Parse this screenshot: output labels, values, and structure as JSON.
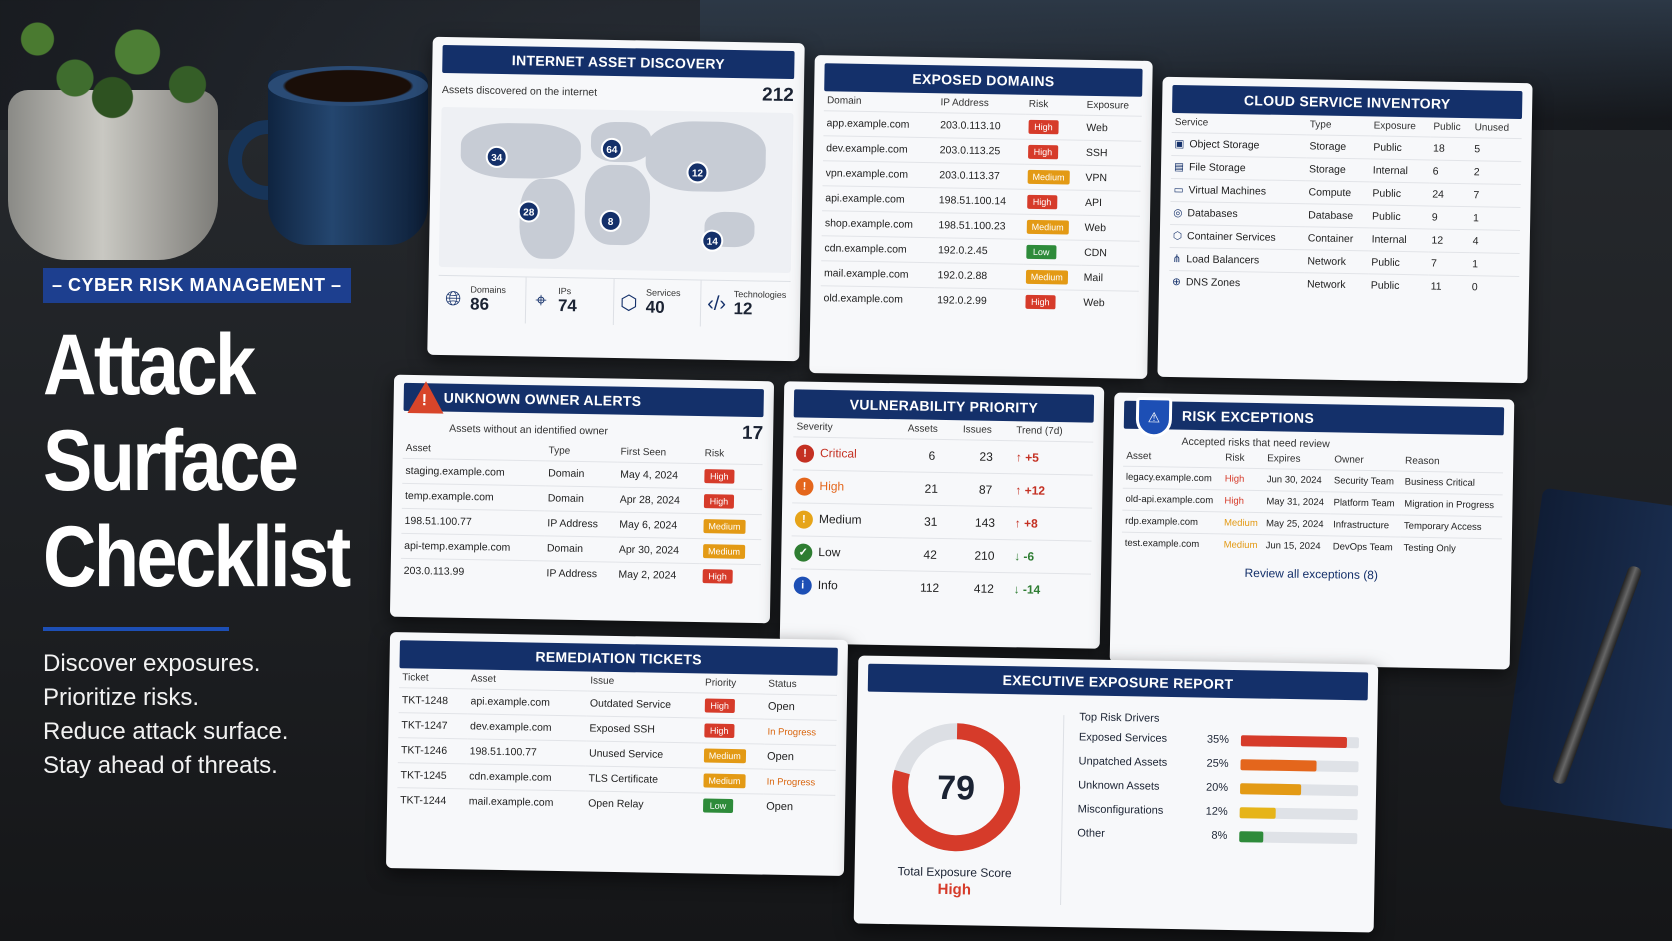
{
  "hero": {
    "kicker": "– CYBER RISK MANAGEMENT –",
    "title_lines": [
      "Attack",
      "Surface",
      "Checklist"
    ],
    "taglines": [
      "Discover exposures.",
      "Prioritize risks.",
      "Reduce attack surface.",
      "Stay ahead of threats."
    ]
  },
  "asset_discovery": {
    "title": "INTERNET ASSET DISCOVERY",
    "subtitle": "Assets discovered on the internet",
    "total": "212",
    "pins": [
      "34",
      "64",
      "12",
      "28",
      "8",
      "14"
    ],
    "stats": [
      {
        "icon": "globe-icon",
        "label": "Domains",
        "value": "86"
      },
      {
        "icon": "location-pin-icon",
        "label": "IPs",
        "value": "74"
      },
      {
        "icon": "cube-icon",
        "label": "Services",
        "value": "40"
      },
      {
        "icon": "code-icon",
        "label": "Technologies",
        "value": "12"
      }
    ]
  },
  "exposed_domains": {
    "title": "EXPOSED DOMAINS",
    "headers": [
      "Domain",
      "IP Address",
      "Risk",
      "Exposure"
    ],
    "rows": [
      {
        "domain": "app.example.com",
        "ip": "203.0.113.10",
        "risk": "High",
        "exposure": "Web"
      },
      {
        "domain": "dev.example.com",
        "ip": "203.0.113.25",
        "risk": "High",
        "exposure": "SSH"
      },
      {
        "domain": "vpn.example.com",
        "ip": "203.0.113.37",
        "risk": "Medium",
        "exposure": "VPN"
      },
      {
        "domain": "api.example.com",
        "ip": "198.51.100.14",
        "risk": "High",
        "exposure": "API"
      },
      {
        "domain": "shop.example.com",
        "ip": "198.51.100.23",
        "risk": "Medium",
        "exposure": "Web"
      },
      {
        "domain": "cdn.example.com",
        "ip": "192.0.2.45",
        "risk": "Low",
        "exposure": "CDN"
      },
      {
        "domain": "mail.example.com",
        "ip": "192.0.2.88",
        "risk": "Medium",
        "exposure": "Mail"
      },
      {
        "domain": "old.example.com",
        "ip": "192.0.2.99",
        "risk": "High",
        "exposure": "Web"
      }
    ]
  },
  "cloud_inventory": {
    "title": "CLOUD SERVICE INVENTORY",
    "headers": [
      "Service",
      "Type",
      "Exposure",
      "Public",
      "Unused"
    ],
    "rows": [
      {
        "icon": "bucket-icon",
        "service": "Object Storage",
        "type": "Storage",
        "exposure": "Public",
        "public": "18",
        "unused": "5"
      },
      {
        "icon": "folder-icon",
        "service": "File Storage",
        "type": "Storage",
        "exposure": "Internal",
        "public": "6",
        "unused": "2"
      },
      {
        "icon": "monitor-icon",
        "service": "Virtual Machines",
        "type": "Compute",
        "exposure": "Public",
        "public": "24",
        "unused": "7"
      },
      {
        "icon": "database-icon",
        "service": "Databases",
        "type": "Database",
        "exposure": "Public",
        "public": "9",
        "unused": "1"
      },
      {
        "icon": "container-icon",
        "service": "Container Services",
        "type": "Container",
        "exposure": "Internal",
        "public": "12",
        "unused": "4"
      },
      {
        "icon": "network-icon",
        "service": "Load Balancers",
        "type": "Network",
        "exposure": "Public",
        "public": "7",
        "unused": "1"
      },
      {
        "icon": "globe-icon",
        "service": "DNS Zones",
        "type": "Network",
        "exposure": "Public",
        "public": "11",
        "unused": "0"
      }
    ]
  },
  "unknown_owner": {
    "title": "UNKNOWN OWNER ALERTS",
    "subtitle": "Assets without an identified owner",
    "total": "17",
    "headers": [
      "Asset",
      "Type",
      "First Seen",
      "Risk"
    ],
    "rows": [
      {
        "asset": "staging.example.com",
        "type": "Domain",
        "first_seen": "May 4, 2024",
        "risk": "High"
      },
      {
        "asset": "temp.example.com",
        "type": "Domain",
        "first_seen": "Apr 28, 2024",
        "risk": "High"
      },
      {
        "asset": "198.51.100.77",
        "type": "IP Address",
        "first_seen": "May 6, 2024",
        "risk": "Medium"
      },
      {
        "asset": "api-temp.example.com",
        "type": "Domain",
        "first_seen": "Apr 30, 2024",
        "risk": "Medium"
      },
      {
        "asset": "203.0.113.99",
        "type": "IP Address",
        "first_seen": "May 2, 2024",
        "risk": "High"
      }
    ]
  },
  "vuln_priority": {
    "title": "VULNERABILITY PRIORITY",
    "headers": [
      "Severity",
      "Assets",
      "Issues",
      "Trend (7d)"
    ],
    "rows": [
      {
        "severity": "Critical",
        "assets": "6",
        "issues": "23",
        "trend": "+5",
        "dir": "up",
        "color": "#c43022",
        "glyph": "!"
      },
      {
        "severity": "High",
        "assets": "21",
        "issues": "87",
        "trend": "+12",
        "dir": "up",
        "color": "#e4661c",
        "glyph": "!"
      },
      {
        "severity": "Medium",
        "assets": "31",
        "issues": "143",
        "trend": "+8",
        "dir": "up",
        "color": "#e6a419",
        "glyph": "!"
      },
      {
        "severity": "Low",
        "assets": "42",
        "issues": "210",
        "trend": "-6",
        "dir": "down",
        "color": "#2e7d32",
        "glyph": "✓"
      },
      {
        "severity": "Info",
        "assets": "112",
        "issues": "412",
        "trend": "-14",
        "dir": "down",
        "color": "#1d4fb5",
        "glyph": "i"
      }
    ]
  },
  "risk_exceptions": {
    "title": "RISK EXCEPTIONS",
    "subtitle": "Accepted risks that need review",
    "headers": [
      "Asset",
      "Risk",
      "Expires",
      "Owner",
      "Reason"
    ],
    "rows": [
      {
        "asset": "legacy.example.com",
        "risk": "High",
        "expires": "Jun 30, 2024",
        "owner": "Security Team",
        "reason": "Business Critical"
      },
      {
        "asset": "old-api.example.com",
        "risk": "High",
        "expires": "May 31, 2024",
        "owner": "Platform Team",
        "reason": "Migration in Progress"
      },
      {
        "asset": "rdp.example.com",
        "risk": "Medium",
        "expires": "May 25, 2024",
        "owner": "Infrastructure",
        "reason": "Temporary Access"
      },
      {
        "asset": "test.example.com",
        "risk": "Medium",
        "expires": "Jun 15, 2024",
        "owner": "DevOps Team",
        "reason": "Testing Only"
      }
    ],
    "link": "Review all exceptions (8)"
  },
  "remediation": {
    "title": "REMEDIATION TICKETS",
    "headers": [
      "Ticket",
      "Asset",
      "Issue",
      "Priority",
      "Status"
    ],
    "rows": [
      {
        "ticket": "TKT-1248",
        "asset": "api.example.com",
        "issue": "Outdated Service",
        "priority": "High",
        "status": "Open"
      },
      {
        "ticket": "TKT-1247",
        "asset": "dev.example.com",
        "issue": "Exposed SSH",
        "priority": "High",
        "status": "In Progress"
      },
      {
        "ticket": "TKT-1246",
        "asset": "198.51.100.77",
        "issue": "Unused Service",
        "priority": "Medium",
        "status": "Open"
      },
      {
        "ticket": "TKT-1245",
        "asset": "cdn.example.com",
        "issue": "TLS Certificate",
        "priority": "Medium",
        "status": "In Progress"
      },
      {
        "ticket": "TKT-1244",
        "asset": "mail.example.com",
        "issue": "Open Relay",
        "priority": "Low",
        "status": "Open"
      }
    ]
  },
  "executive": {
    "title": "EXECUTIVE EXPOSURE REPORT",
    "score": "79",
    "score_fraction": 0.79,
    "score_label": "Total Exposure Score",
    "score_level": "High",
    "drivers_title": "Top Risk Drivers",
    "drivers": [
      {
        "label": "Exposed Services",
        "pct": "35%",
        "value": 0.35,
        "color": "#d63b2a"
      },
      {
        "label": "Unpatched Assets",
        "pct": "25%",
        "value": 0.25,
        "color": "#e4661c"
      },
      {
        "label": "Unknown Assets",
        "pct": "20%",
        "value": 0.2,
        "color": "#e39a15"
      },
      {
        "label": "Misconfigurations",
        "pct": "12%",
        "value": 0.12,
        "color": "#e6b419"
      },
      {
        "label": "Other",
        "pct": "8%",
        "value": 0.08,
        "color": "#2e8b3a"
      }
    ]
  }
}
